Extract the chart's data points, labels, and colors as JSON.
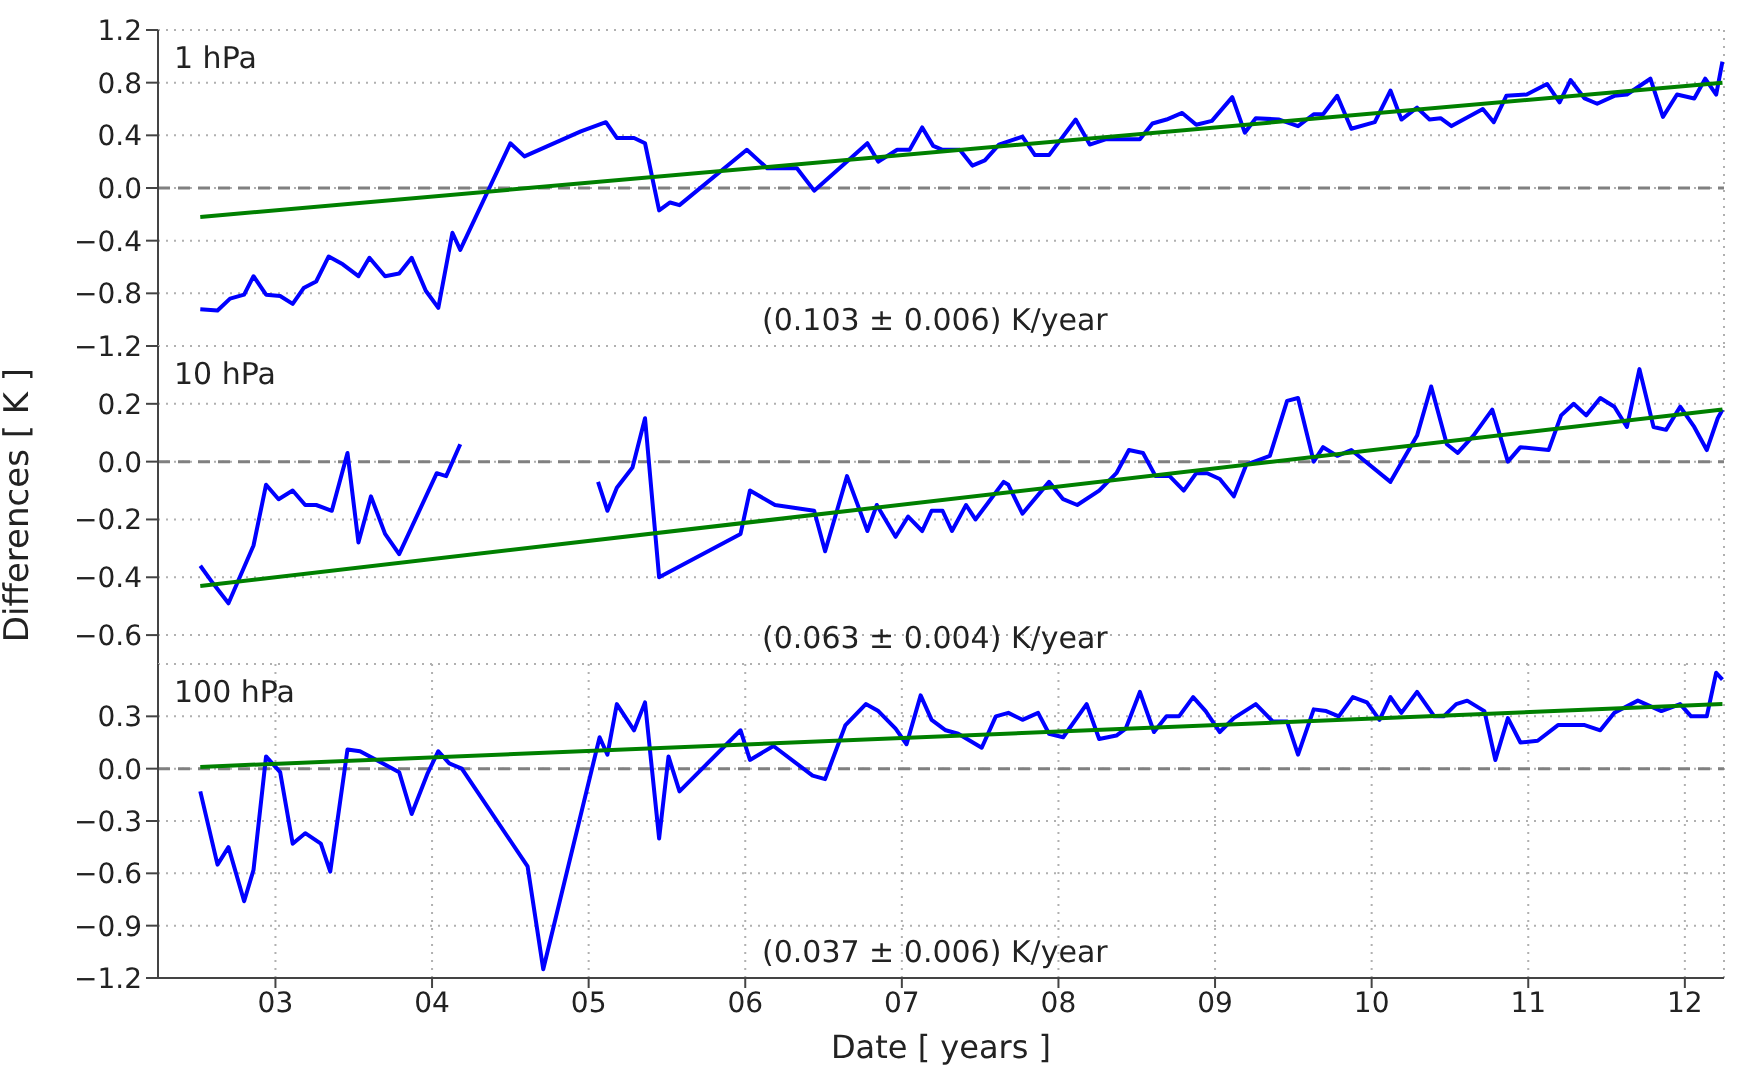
{
  "chart_data": [
    {
      "type": "line",
      "annotations": [
        "1 hPa",
        "(0.103 ± 0.006) K/year"
      ],
      "xlim": [
        2002.25,
        2012.25
      ],
      "xticks": [
        {
          "value": 2003,
          "label": null
        },
        {
          "value": 2004,
          "label": null
        },
        {
          "value": 2005,
          "label": null
        },
        {
          "value": 2006,
          "label": null
        },
        {
          "value": 2007,
          "label": null
        },
        {
          "value": 2008,
          "label": null
        },
        {
          "value": 2009,
          "label": null
        },
        {
          "value": 2010,
          "label": null
        },
        {
          "value": 2011,
          "label": null
        },
        {
          "value": 2012,
          "label": null
        }
      ],
      "ylim": [
        -1.2,
        1.2
      ],
      "yticks": [
        {
          "value": -1.2,
          "label": "−1.2"
        },
        {
          "value": -0.8,
          "label": "−0.8"
        },
        {
          "value": -0.4,
          "label": "−0.4"
        },
        {
          "value": 0,
          "label": "0.0"
        },
        {
          "value": 0.4,
          "label": "0.4"
        },
        {
          "value": 0.8,
          "label": "0.8"
        },
        {
          "value": 1.2,
          "label": "1.2"
        }
      ],
      "grid": true,
      "tick_labels": "y",
      "ref_lines": [
        {
          "axis": "y",
          "value": 0,
          "color": "#808080",
          "line_style": "dashed"
        }
      ],
      "series": [
        {
          "color": "#0000ff",
          "x": [
            2002.52,
            2002.63,
            2002.71,
            2002.8,
            2002.86,
            2002.94,
            2003.03,
            2003.11,
            2003.18,
            2003.26,
            2003.34,
            2003.43,
            2003.53,
            2003.6,
            2003.7,
            2003.79,
            2003.87,
            2003.96,
            2004.04,
            2004.13,
            2004.18,
            2004.5,
            2004.59,
            2004.95,
            2005.11,
            2005.18,
            2005.29,
            2005.36,
            2005.45,
            2005.52,
            2005.58,
            2006.01,
            2006.14,
            2006.33,
            2006.44,
            2006.63,
            2006.78,
            2006.85,
            2006.97,
            2007.05,
            2007.13,
            2007.2,
            2007.26,
            2007.37,
            2007.45,
            2007.53,
            2007.62,
            2007.77,
            2007.85,
            2007.94,
            2008.11,
            2008.2,
            2008.3,
            2008.52,
            2008.6,
            2008.69,
            2008.79,
            2008.88,
            2008.98,
            2009.11,
            2009.19,
            2009.26,
            2009.41,
            2009.53,
            2009.63,
            2009.69,
            2009.78,
            2009.87,
            2010.02,
            2010.12,
            2010.19,
            2010.29,
            2010.37,
            2010.44,
            2010.51,
            2010.71,
            2010.78,
            2010.86,
            2010.99,
            2011.12,
            2011.2,
            2011.27,
            2011.36,
            2011.44,
            2011.55,
            2011.63,
            2011.78,
            2011.86,
            2011.95,
            2012.06,
            2012.13,
            2012.2,
            2012.24
          ],
          "values": [
            -0.92,
            -0.93,
            -0.84,
            -0.81,
            -0.67,
            -0.81,
            -0.82,
            -0.88,
            -0.76,
            -0.71,
            -0.52,
            -0.58,
            -0.67,
            -0.53,
            -0.67,
            -0.65,
            -0.53,
            -0.78,
            -0.91,
            -0.34,
            -0.47,
            0.34,
            0.24,
            0.43,
            0.5,
            0.38,
            0.38,
            0.34,
            -0.17,
            -0.11,
            -0.13,
            0.29,
            0.15,
            0.15,
            -0.02,
            0.18,
            0.34,
            0.2,
            0.29,
            0.29,
            0.46,
            0.32,
            0.29,
            0.29,
            0.17,
            0.21,
            0.33,
            0.39,
            0.25,
            0.25,
            0.52,
            0.33,
            0.37,
            0.37,
            0.49,
            0.52,
            0.57,
            0.48,
            0.51,
            0.69,
            0.42,
            0.53,
            0.52,
            0.47,
            0.56,
            0.56,
            0.7,
            0.45,
            0.5,
            0.74,
            0.52,
            0.61,
            0.52,
            0.53,
            0.47,
            0.6,
            0.5,
            0.7,
            0.71,
            0.79,
            0.65,
            0.82,
            0.68,
            0.64,
            0.7,
            0.71,
            0.83,
            0.54,
            0.71,
            0.68,
            0.83,
            0.71,
            0.96
          ]
        },
        {
          "color": "#008000",
          "x": [
            2002.52,
            2012.24
          ],
          "values": [
            -0.22,
            0.8
          ]
        }
      ]
    },
    {
      "type": "line",
      "ylabel": "Differences [ K ]",
      "annotations": [
        "10 hPa",
        "(0.063 ± 0.004) K/year"
      ],
      "xlim": [
        2002.25,
        2012.25
      ],
      "xticks": [
        {
          "value": 2003,
          "label": null
        },
        {
          "value": 2004,
          "label": null
        },
        {
          "value": 2005,
          "label": null
        },
        {
          "value": 2006,
          "label": null
        },
        {
          "value": 2007,
          "label": null
        },
        {
          "value": 2008,
          "label": null
        },
        {
          "value": 2009,
          "label": null
        },
        {
          "value": 2010,
          "label": null
        },
        {
          "value": 2011,
          "label": null
        },
        {
          "value": 2012,
          "label": null
        }
      ],
      "ylim": [
        -0.7,
        0.4
      ],
      "yticks": [
        {
          "value": -0.6,
          "label": "−0.6"
        },
        {
          "value": -0.4,
          "label": "−0.4"
        },
        {
          "value": -0.2,
          "label": "−0.2"
        },
        {
          "value": 0,
          "label": "0.0"
        },
        {
          "value": 0.2,
          "label": "0.2"
        }
      ],
      "grid": true,
      "tick_labels": "y",
      "ref_lines": [
        {
          "axis": "y",
          "value": 0,
          "color": "#808080",
          "line_style": "dashed"
        }
      ],
      "series": [
        {
          "color": "#0000ff",
          "x": [
            2002.52,
            2002.6,
            2002.7,
            2002.86,
            2002.94,
            2003.02,
            2003.11,
            2003.19,
            2003.26,
            2003.36,
            2003.46,
            2003.53,
            2003.61,
            2003.7,
            2003.79,
            2004.03,
            2004.09,
            2004.18,
            2004.6,
            2004.63,
            2005.0,
            2005.06,
            2005.12,
            2005.18,
            2005.28,
            2005.36,
            2005.45,
            2005.97,
            2006.03,
            2006.19,
            2006.44,
            2006.51,
            2006.65,
            2006.78,
            2006.84,
            2006.96,
            2007.04,
            2007.13,
            2007.19,
            2007.26,
            2007.32,
            2007.41,
            2007.47,
            2007.54,
            2007.65,
            2007.68,
            2007.77,
            2007.94,
            2008.03,
            2008.12,
            2008.26,
            2008.37,
            2008.45,
            2008.54,
            2008.62,
            2008.71,
            2008.8,
            2008.88,
            2008.95,
            2009.03,
            2009.12,
            2009.2,
            2009.35,
            2009.46,
            2009.53,
            2009.63,
            2009.69,
            2009.78,
            2009.87,
            2010.12,
            2010.29,
            2010.38,
            2010.48,
            2010.55,
            2010.65,
            2010.77,
            2010.87,
            2010.95,
            2011.13,
            2011.21,
            2011.29,
            2011.37,
            2011.46,
            2011.55,
            2011.63,
            2011.71,
            2011.8,
            2011.88,
            2011.97,
            2012.06,
            2012.14,
            2012.21,
            2012.24
          ],
          "values": [
            -0.36,
            -0.42,
            -0.49,
            -0.29,
            -0.08,
            -0.13,
            -0.1,
            -0.15,
            -0.15,
            -0.17,
            0.03,
            -0.28,
            -0.12,
            -0.25,
            -0.32,
            -0.04,
            -0.05,
            0.06,
            null,
            null,
            null,
            -0.07,
            -0.17,
            -0.09,
            -0.02,
            0.15,
            -0.4,
            -0.25,
            -0.1,
            -0.15,
            -0.17,
            -0.31,
            -0.05,
            -0.24,
            -0.15,
            -0.26,
            -0.19,
            -0.24,
            -0.17,
            -0.17,
            -0.24,
            -0.15,
            -0.2,
            -0.15,
            -0.07,
            -0.08,
            -0.18,
            -0.07,
            -0.13,
            -0.15,
            -0.1,
            -0.04,
            0.04,
            0.03,
            -0.05,
            -0.05,
            -0.1,
            -0.04,
            -0.04,
            -0.06,
            -0.12,
            -0.01,
            0.02,
            0.21,
            0.22,
            0.0,
            0.05,
            0.02,
            0.04,
            -0.07,
            0.09,
            0.26,
            0.06,
            0.03,
            0.09,
            0.18,
            0.0,
            0.05,
            0.04,
            0.16,
            0.2,
            0.16,
            0.22,
            0.19,
            0.12,
            0.32,
            0.12,
            0.11,
            0.19,
            0.12,
            0.04,
            0.15,
            0.18
          ]
        },
        {
          "color": "#008000",
          "x": [
            2002.52,
            2012.24
          ],
          "values": [
            -0.43,
            0.18
          ]
        }
      ]
    },
    {
      "type": "line",
      "xlabel": "Date [ years ]",
      "annotations": [
        "100 hPa",
        "(0.037 ± 0.006) K/year"
      ],
      "xlim": [
        2002.25,
        2012.25
      ],
      "xticks": [
        {
          "value": 2003,
          "label": "03"
        },
        {
          "value": 2004,
          "label": "04"
        },
        {
          "value": 2005,
          "label": "05"
        },
        {
          "value": 2006,
          "label": "06"
        },
        {
          "value": 2007,
          "label": "07"
        },
        {
          "value": 2008,
          "label": "08"
        },
        {
          "value": 2009,
          "label": "09"
        },
        {
          "value": 2010,
          "label": "10"
        },
        {
          "value": 2011,
          "label": "11"
        },
        {
          "value": 2012,
          "label": "12"
        }
      ],
      "ylim": [
        -1.2,
        0.6
      ],
      "yticks": [
        {
          "value": -1.2,
          "label": "−1.2"
        },
        {
          "value": -0.9,
          "label": "−0.9"
        },
        {
          "value": -0.6,
          "label": "−0.6"
        },
        {
          "value": -0.3,
          "label": "−0.3"
        },
        {
          "value": 0,
          "label": "0.0"
        },
        {
          "value": 0.3,
          "label": "0.3"
        }
      ],
      "grid": true,
      "ref_lines": [
        {
          "axis": "y",
          "value": 0,
          "color": "#808080",
          "line_style": "dashed"
        }
      ],
      "series": [
        {
          "color": "#0000ff",
          "x": [
            2002.52,
            2002.63,
            2002.7,
            2002.8,
            2002.86,
            2002.94,
            2003.03,
            2003.11,
            2003.19,
            2003.29,
            2003.35,
            2003.46,
            2003.54,
            2003.79,
            2003.87,
            2003.97,
            2004.04,
            2004.11,
            2004.19,
            2004.61,
            2004.71,
            2005.07,
            2005.12,
            2005.18,
            2005.29,
            2005.36,
            2005.45,
            2005.51,
            2005.58,
            2005.97,
            2006.03,
            2006.18,
            2006.43,
            2006.51,
            2006.64,
            2006.77,
            2006.85,
            2006.96,
            2007.03,
            2007.12,
            2007.19,
            2007.28,
            2007.36,
            2007.51,
            2007.6,
            2007.68,
            2007.77,
            2007.87,
            2007.94,
            2008.03,
            2008.18,
            2008.26,
            2008.37,
            2008.43,
            2008.52,
            2008.61,
            2008.69,
            2008.77,
            2008.86,
            2008.94,
            2009.03,
            2009.12,
            2009.26,
            2009.37,
            2009.46,
            2009.53,
            2009.63,
            2009.71,
            2009.79,
            2009.88,
            2009.97,
            2010.05,
            2010.12,
            2010.19,
            2010.29,
            2010.4,
            2010.46,
            2010.54,
            2010.61,
            2010.72,
            2010.79,
            2010.87,
            2010.95,
            2011.06,
            2011.19,
            2011.36,
            2011.46,
            2011.55,
            2011.7,
            2011.85,
            2011.97,
            2012.04,
            2012.14,
            2012.2,
            2012.24
          ],
          "values": [
            -0.13,
            -0.55,
            -0.45,
            -0.76,
            -0.58,
            0.07,
            -0.02,
            -0.43,
            -0.37,
            -0.43,
            -0.59,
            0.11,
            0.1,
            -0.02,
            -0.26,
            -0.03,
            0.1,
            0.03,
            0.0,
            -0.56,
            -1.15,
            0.18,
            0.08,
            0.37,
            0.22,
            0.38,
            -0.4,
            0.07,
            -0.13,
            0.22,
            0.05,
            0.13,
            -0.04,
            -0.06,
            0.25,
            0.37,
            0.33,
            0.23,
            0.14,
            0.42,
            0.28,
            0.22,
            0.2,
            0.12,
            0.3,
            0.32,
            0.28,
            0.32,
            0.2,
            0.18,
            0.37,
            0.17,
            0.19,
            0.23,
            0.44,
            0.21,
            0.3,
            0.3,
            0.41,
            0.33,
            0.21,
            0.29,
            0.37,
            0.27,
            0.27,
            0.08,
            0.34,
            0.33,
            0.3,
            0.41,
            0.38,
            0.28,
            0.41,
            0.32,
            0.44,
            0.3,
            0.3,
            0.37,
            0.39,
            0.33,
            0.05,
            0.29,
            0.15,
            0.16,
            0.25,
            0.25,
            0.22,
            0.32,
            0.39,
            0.33,
            0.37,
            0.3,
            0.3,
            0.55,
            0.51
          ]
        },
        {
          "color": "#008000",
          "x": [
            2002.52,
            2012.24
          ],
          "values": [
            0.01,
            0.37
          ]
        }
      ]
    }
  ]
}
